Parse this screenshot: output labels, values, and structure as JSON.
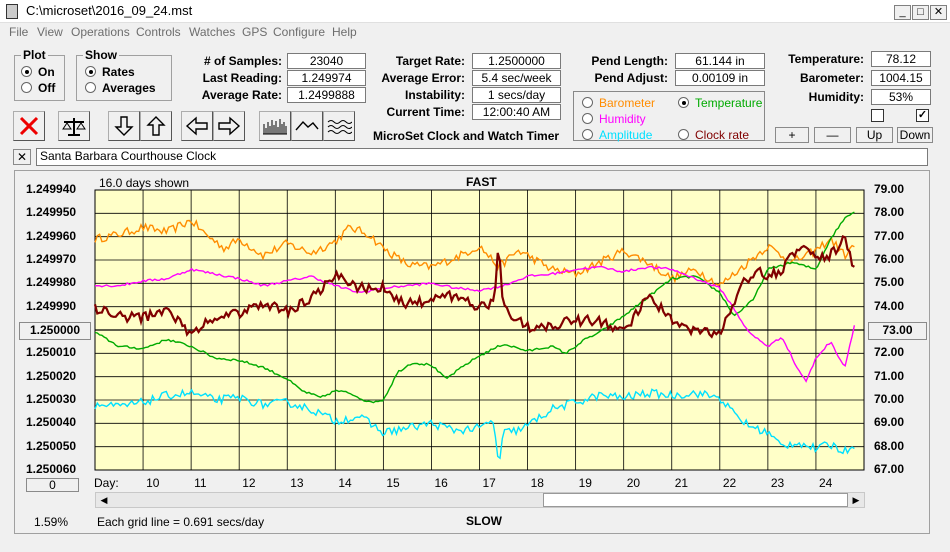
{
  "window": {
    "title": "C:\\microset\\2016_09_24.mst"
  },
  "menu": [
    "File",
    "View",
    "Operations",
    "Controls",
    "Watches",
    "GPS",
    "Configure",
    "Help"
  ],
  "plot_group": {
    "title": "Plot",
    "on": "On",
    "off": "Off",
    "selected": "On"
  },
  "show_group": {
    "title": "Show",
    "rates": "Rates",
    "averages": "Averages",
    "selected": "Rates"
  },
  "stats": {
    "samples_label": "# of Samples:",
    "samples": "23040",
    "last_label": "Last Reading:",
    "last": "1.249974",
    "avg_label": "Average Rate:",
    "avg": "1.2499888",
    "target_label": "Target Rate:",
    "target": "1.2500000",
    "err_label": "Average Error:",
    "err": "5.4 sec/week",
    "inst_label": "Instability:",
    "inst": "1 secs/day",
    "time_label": "Current Time:",
    "time": "12:00:40 AM",
    "pend_len_label": "Pend Length:",
    "pend_len": "61.144 in",
    "pend_adj_label": "Pend Adjust:",
    "pend_adj": "0.00109 in",
    "temp_label": "Temperature:",
    "temp": "78.12",
    "baro_label": "Barometer:",
    "baro": "1004.15",
    "hum_label": "Humidity:",
    "hum": "53%"
  },
  "app_title": "MicroSet Clock and Watch Timer",
  "sensor_select": {
    "barometer": "Barometer",
    "temperature": "Temperature",
    "humidity": "Humidity",
    "amplitude": "Amplitude",
    "clock_rate": "Clock rate",
    "selected": "Temperature"
  },
  "small_buttons": {
    "plus": "+",
    "minus": "—",
    "up": "Up",
    "down": "Down"
  },
  "checkboxes": [
    false,
    true
  ],
  "clock_name": "Santa Barbara Courthouse Clock",
  "close_label": "✕",
  "plot": {
    "days_shown": "16.0 days shown",
    "fast": "FAST",
    "slow": "SLOW",
    "left_button": "1.250000",
    "right_button": "73.00",
    "zero_button": "0",
    "day_label": "Day:",
    "percent": "1.59%",
    "grid_note": "Each grid line = 0.691 secs/day"
  },
  "colors": {
    "plot_bg": "#ffffc8",
    "rate": "#800000",
    "temperature": "#00aa00",
    "barometer": "#ff8c00",
    "humidity": "#ff00ff",
    "amplitude": "#00e0ff"
  },
  "chart_data": {
    "type": "line",
    "x_axis": {
      "label": "Day:",
      "ticks": [
        10,
        11,
        12,
        13,
        14,
        15,
        16,
        17,
        18,
        19,
        20,
        21,
        22,
        23,
        24
      ],
      "range": [
        9,
        25
      ]
    },
    "y_left": {
      "ticks": [
        "1.249940",
        "1.249950",
        "1.249960",
        "1.249970",
        "1.249980",
        "1.249990",
        "1.250000",
        "1.250010",
        "1.250020",
        "1.250030",
        "1.250040",
        "1.250050",
        "1.250060"
      ],
      "range": [
        1.24994,
        1.25006
      ]
    },
    "y_right": {
      "ticks": [
        "79.00",
        "78.00",
        "77.00",
        "76.00",
        "75.00",
        "74.00",
        "73.00",
        "72.00",
        "71.00",
        "70.00",
        "69.00",
        "68.00",
        "67.00"
      ],
      "range": [
        67,
        79
      ]
    },
    "series": [
      {
        "color": "#ff8c00",
        "axis": "right",
        "jitter": 0.18,
        "x": [
          9,
          9.5,
          10,
          10.5,
          11,
          11.3,
          11.7,
          12,
          12.5,
          13,
          13.5,
          14,
          14.3,
          14.7,
          15,
          15.5,
          16,
          16.5,
          17,
          17.4,
          17.8,
          18,
          18.5,
          19,
          19.5,
          20,
          20.5,
          21,
          21.5,
          22,
          22.3,
          22.7,
          23,
          23.5,
          24,
          24.3,
          24.6,
          24.8
        ],
        "y": [
          76.9,
          77.1,
          77.4,
          77.2,
          77.7,
          77.1,
          76.5,
          76.9,
          76.2,
          76.7,
          76.3,
          76.8,
          77.4,
          77.1,
          76.5,
          75.8,
          75.7,
          76.1,
          76.6,
          75.7,
          76.4,
          76.2,
          75.6,
          75.4,
          75.9,
          76.4,
          75.9,
          75.2,
          75.6,
          74.9,
          75.4,
          76.1,
          76.6,
          75.9,
          76.4,
          76.9,
          76.2,
          76.6
        ]
      },
      {
        "color": "#00aa00",
        "axis": "right",
        "jitter": 0.05,
        "x": [
          9,
          9.5,
          10,
          10.5,
          11,
          11.5,
          12,
          12.5,
          13,
          13.3,
          13.7,
          14,
          14.3,
          14.7,
          15,
          15.3,
          15.6,
          16,
          16.3,
          16.7,
          17,
          17.5,
          18,
          18.5,
          18.8,
          19.2,
          19.5,
          20,
          20.5,
          21,
          21.5,
          22,
          22.3,
          22.7,
          23,
          23.5,
          24,
          24.3,
          24.6,
          24.8
        ],
        "y": [
          72.9,
          72.3,
          72.2,
          72.6,
          72.3,
          71.8,
          71.7,
          71.4,
          70.9,
          70.4,
          70.1,
          70.4,
          70.3,
          69.9,
          70.0,
          71.2,
          71.6,
          71.5,
          70.9,
          71.5,
          71.9,
          72.4,
          72.1,
          72.3,
          72.0,
          72.6,
          72.9,
          73.6,
          74.4,
          75.2,
          75.3,
          74.6,
          73.6,
          74.3,
          75.6,
          75.9,
          75.6,
          76.9,
          77.8,
          78.1
        ]
      },
      {
        "color": "#ff00ff",
        "axis": "right",
        "jitter": 0.05,
        "x": [
          9,
          9.5,
          10,
          10.5,
          11,
          11.5,
          12,
          12.5,
          13,
          13.5,
          14,
          14.5,
          15,
          15.5,
          16,
          16.5,
          17,
          17.5,
          18,
          18.5,
          19,
          19.5,
          20,
          20.5,
          21,
          21.5,
          22,
          22.3,
          22.6,
          23,
          23.3,
          23.6,
          23.8,
          24,
          24.3,
          24.6,
          24.8
        ],
        "y": [
          74.9,
          74.9,
          75.1,
          75.2,
          75.6,
          75.4,
          75.2,
          74.9,
          75.1,
          75.3,
          74.9,
          74.6,
          74.8,
          74.9,
          75.0,
          74.8,
          74.7,
          74.9,
          75.3,
          75.4,
          75.6,
          75.7,
          75.5,
          75.7,
          75.6,
          75.2,
          74.8,
          73.9,
          72.9,
          72.3,
          72.7,
          71.4,
          70.8,
          71.8,
          72.5,
          71.4,
          73.2
        ]
      },
      {
        "color": "#00e0ff",
        "axis": "right",
        "jitter": 0.18,
        "x": [
          9,
          9.5,
          10,
          10.5,
          11,
          11.5,
          12,
          12.5,
          13,
          13.5,
          14,
          14.5,
          15,
          15.5,
          16,
          16.5,
          17,
          17.3,
          17.4,
          17.5,
          17.8,
          18,
          18.5,
          19,
          19.5,
          20,
          20.5,
          21,
          21.5,
          22,
          22.3,
          22.6,
          23,
          23.3,
          23.6,
          24,
          24.3,
          24.6,
          24.8
        ],
        "y": [
          69.8,
          69.7,
          69.9,
          70.2,
          70.3,
          70.0,
          70.1,
          69.8,
          69.9,
          69.6,
          69.1,
          69.3,
          68.6,
          68.8,
          69.0,
          68.7,
          68.8,
          69.1,
          67.1,
          68.6,
          68.7,
          68.9,
          69.6,
          69.9,
          70.2,
          70.1,
          70.3,
          70.2,
          70.3,
          70.1,
          69.4,
          68.9,
          68.6,
          68.0,
          68.2,
          67.9,
          68.1,
          67.8,
          68.1
        ]
      },
      {
        "color": "#800000",
        "axis": "left",
        "jitter": 2.2e-06,
        "width": 2.2,
        "x": [
          9,
          9.5,
          10,
          10.5,
          11,
          11.3,
          11.7,
          12,
          12.5,
          13,
          13.5,
          14,
          14.5,
          15,
          15.5,
          16,
          16.5,
          17,
          17.3,
          17.4,
          17.5,
          17.8,
          18,
          18.5,
          19,
          19.5,
          20,
          20.5,
          21,
          21.5,
          22,
          22.3,
          22.5,
          22.8,
          23,
          23.3,
          23.6,
          24,
          24.3,
          24.6,
          24.8
        ],
        "y": [
          1.249991,
          1.249994,
          1.249995,
          1.249991,
          1.250002,
          1.249997,
          1.249993,
          1.249993,
          1.249989,
          1.249992,
          1.249986,
          1.249977,
          1.249982,
          1.249982,
          1.249989,
          1.249987,
          1.249985,
          1.24999,
          1.249989,
          1.249963,
          1.249991,
          1.249995,
          1.249999,
          1.249998,
          1.249996,
          1.249996,
          1.250001,
          1.249985,
          1.249996,
          1.250001,
          1.250001,
          1.249988,
          1.249979,
          1.249975,
          1.249977,
          1.249974,
          1.249965,
          1.249968,
          1.249968,
          1.249961,
          1.249974
        ]
      }
    ]
  }
}
